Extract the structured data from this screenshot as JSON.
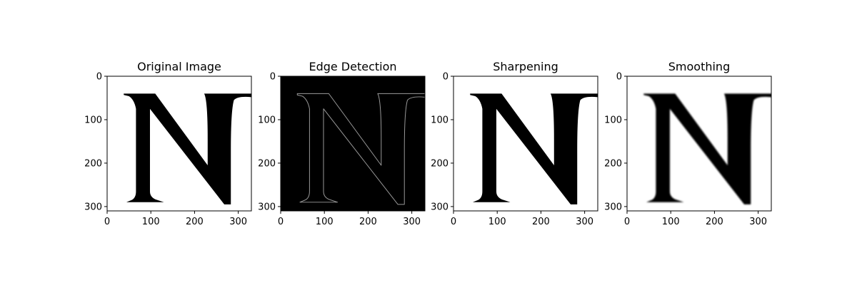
{
  "chart_data": [
    {
      "type": "image",
      "title": "Original Image",
      "xlim": [
        0,
        330
      ],
      "ylim": [
        310,
        0
      ],
      "xticks": [
        "0",
        "100",
        "200",
        "300"
      ],
      "yticks": [
        "0",
        "100",
        "200",
        "300"
      ],
      "image": {
        "background": "#ffffff",
        "foreground": "#000000",
        "style": "filled",
        "blur": 0
      }
    },
    {
      "type": "image",
      "title": "Edge Detection",
      "xlim": [
        0,
        330
      ],
      "ylim": [
        310,
        0
      ],
      "xticks": [
        "0",
        "100",
        "200",
        "300"
      ],
      "yticks": [
        "0",
        "100",
        "200",
        "300"
      ],
      "image": {
        "background": "#000000",
        "foreground": "#9a9a9a",
        "style": "outline",
        "blur": 0
      }
    },
    {
      "type": "image",
      "title": "Sharpening",
      "xlim": [
        0,
        330
      ],
      "ylim": [
        310,
        0
      ],
      "xticks": [
        "0",
        "100",
        "200",
        "300"
      ],
      "yticks": [
        "0",
        "100",
        "200",
        "300"
      ],
      "image": {
        "background": "#ffffff",
        "foreground": "#000000",
        "style": "filled",
        "blur": 0
      }
    },
    {
      "type": "image",
      "title": "Smoothing",
      "xlim": [
        0,
        330
      ],
      "ylim": [
        310,
        0
      ],
      "xticks": [
        "0",
        "100",
        "200",
        "300"
      ],
      "yticks": [
        "0",
        "100",
        "200",
        "300"
      ],
      "image": {
        "background": "#ffffff",
        "foreground": "#000000",
        "style": "filled",
        "blur": 1.6
      }
    }
  ]
}
